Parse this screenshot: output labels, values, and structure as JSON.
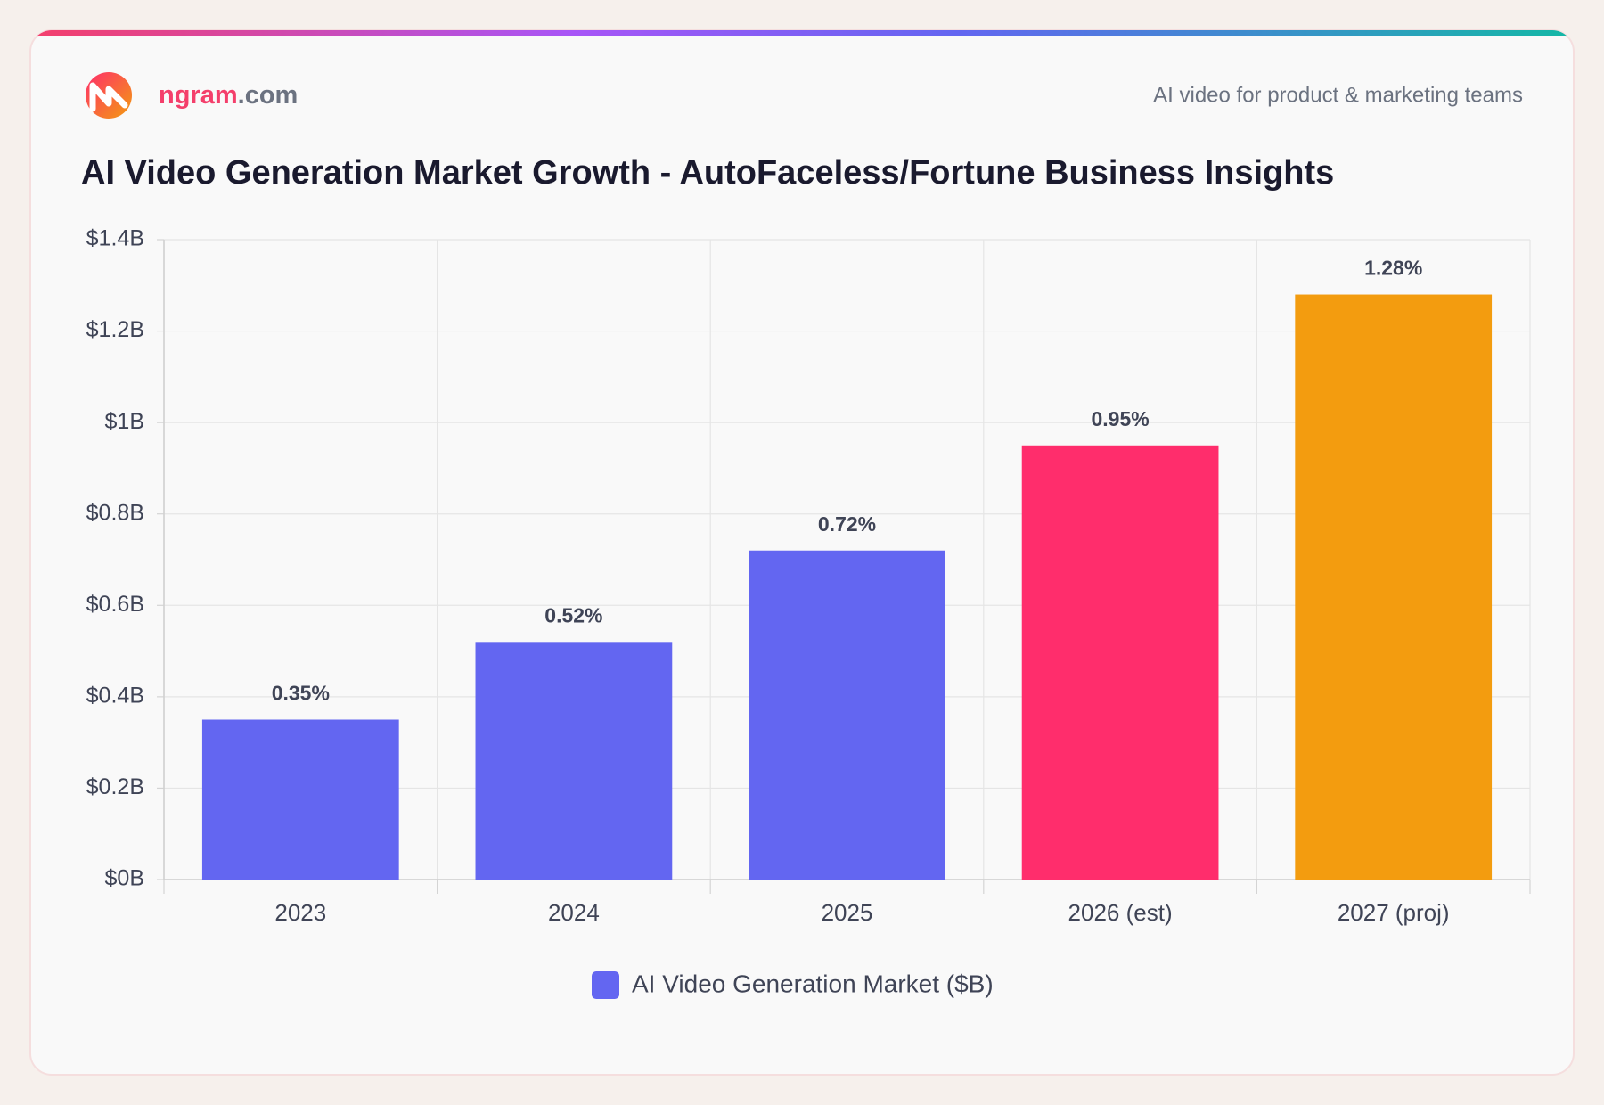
{
  "header": {
    "brand": "ngram",
    "domain": ".com",
    "tagline": "AI video for product & marketing teams"
  },
  "chart_data": {
    "type": "bar",
    "title": "AI Video Generation Market Growth - AutoFaceless/Fortune Business Insights",
    "categories": [
      "2023",
      "2024",
      "2025",
      "2026 (est)",
      "2027 (proj)"
    ],
    "series": [
      {
        "name": "AI Video Generation Market ($B)",
        "color": "#6366f1",
        "values": [
          0.35,
          0.52,
          0.72,
          0.95,
          1.28
        ],
        "value_labels": [
          "0.35%",
          "0.52%",
          "0.72%",
          "0.95%",
          "1.28%"
        ],
        "colors": [
          "#6366f1",
          "#6366f1",
          "#6366f1",
          "#ff2d6c",
          "#f39c0f"
        ]
      }
    ],
    "ylim": [
      0,
      1.4
    ],
    "yticks": [
      {
        "value": 0,
        "label": "$0B"
      },
      {
        "value": 0.2,
        "label": "$0.2B"
      },
      {
        "value": 0.4,
        "label": "$0.4B"
      },
      {
        "value": 0.6,
        "label": "$0.6B"
      },
      {
        "value": 0.8,
        "label": "$0.8B"
      },
      {
        "value": 1,
        "label": "$1B"
      },
      {
        "value": 1.2,
        "label": "$1.2B"
      },
      {
        "value": 1.4,
        "label": "$1.4B"
      }
    ],
    "grid": true,
    "legend": "bottom"
  }
}
